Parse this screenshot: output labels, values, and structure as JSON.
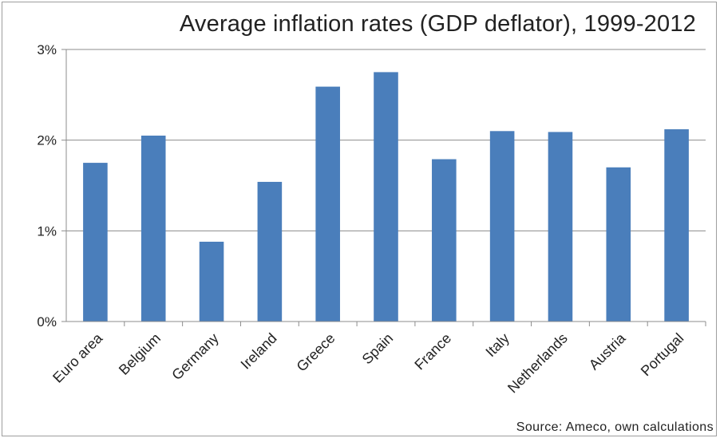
{
  "chart_data": {
    "type": "bar",
    "title": "Average inflation rates (GDP deflator), 1999-2012",
    "source": "Source: Ameco, own calculations",
    "categories": [
      "Euro area",
      "Belgium",
      "Germany",
      "Ireland",
      "Greece",
      "Spain",
      "France",
      "Italy",
      "Netherlands",
      "Austria",
      "Portugal"
    ],
    "values": [
      1.75,
      2.05,
      0.88,
      1.54,
      2.59,
      2.75,
      1.79,
      2.1,
      2.09,
      1.7,
      2.12
    ],
    "ylim": [
      0,
      3
    ],
    "yticks": [
      "0%",
      "1%",
      "2%",
      "3%"
    ],
    "xlabel": "",
    "ylabel": "",
    "grid": true,
    "legend": "none",
    "bar_color": "#4a7ebb"
  }
}
